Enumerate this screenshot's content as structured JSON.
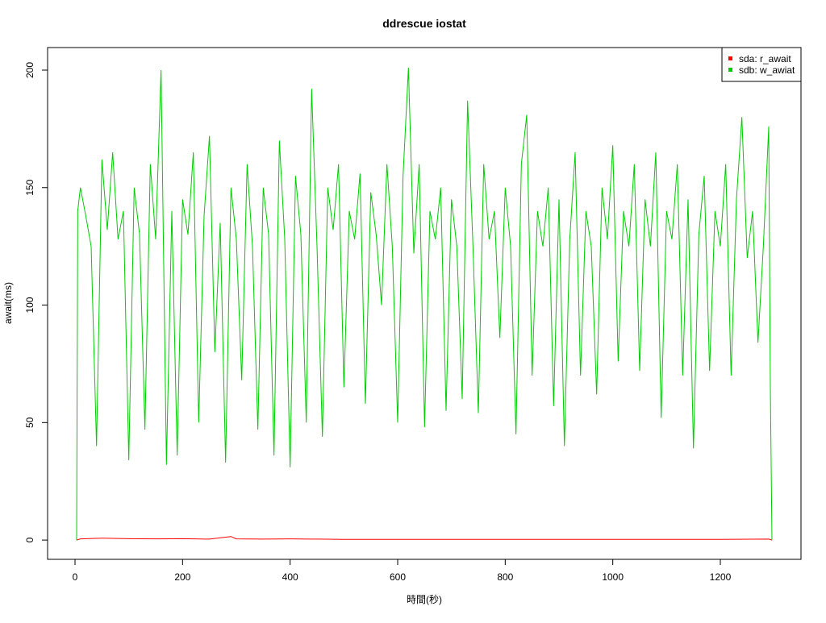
{
  "chart_data": {
    "type": "line",
    "title": "ddrescue iostat",
    "x_label": "時間(秒)",
    "y_label": "await(ms)",
    "xlim": [
      -51,
      1350
    ],
    "ylim": [
      -8.2,
      209.6
    ],
    "xticks": [
      0,
      200,
      400,
      600,
      800,
      1000,
      1200
    ],
    "yticks": [
      0,
      50,
      100,
      150,
      200
    ],
    "grid": false,
    "legend_position": "top-right",
    "series": [
      {
        "name": "sda: r_await",
        "color": "#ff0000",
        "x": [
          3,
          10,
          50,
          100,
          150,
          200,
          250,
          290,
          300,
          350,
          400,
          450,
          500,
          600,
          700,
          800,
          900,
          1000,
          1100,
          1200,
          1290,
          1296
        ],
        "values": [
          0,
          0.5,
          0.8,
          0.6,
          0.5,
          0.6,
          0.4,
          1.5,
          0.5,
          0.4,
          0.5,
          0.4,
          0.3,
          0.3,
          0.3,
          0.3,
          0.3,
          0.3,
          0.3,
          0.3,
          0.4,
          0
        ]
      },
      {
        "name": "sdb: w_awiat",
        "color": "#00cd00",
        "x": [
          3,
          5,
          10,
          20,
          30,
          40,
          50,
          60,
          70,
          80,
          90,
          100,
          110,
          120,
          130,
          140,
          150,
          160,
          170,
          180,
          190,
          200,
          210,
          220,
          230,
          240,
          250,
          260,
          270,
          280,
          290,
          300,
          310,
          320,
          330,
          340,
          350,
          360,
          370,
          380,
          390,
          400,
          410,
          420,
          430,
          440,
          450,
          460,
          470,
          480,
          490,
          500,
          510,
          520,
          530,
          540,
          550,
          560,
          570,
          580,
          590,
          600,
          610,
          620,
          630,
          640,
          650,
          660,
          670,
          680,
          690,
          700,
          710,
          720,
          730,
          740,
          750,
          760,
          770,
          780,
          790,
          800,
          810,
          820,
          830,
          840,
          850,
          860,
          870,
          880,
          890,
          900,
          910,
          920,
          930,
          940,
          950,
          960,
          970,
          980,
          990,
          1000,
          1010,
          1020,
          1030,
          1040,
          1050,
          1060,
          1070,
          1080,
          1090,
          1100,
          1110,
          1120,
          1130,
          1140,
          1150,
          1160,
          1170,
          1180,
          1190,
          1200,
          1210,
          1220,
          1230,
          1240,
          1250,
          1260,
          1270,
          1280,
          1290,
          1293,
          1296
        ],
        "values": [
          0,
          140,
          150,
          138,
          125,
          40,
          162,
          132,
          165,
          128,
          140,
          34,
          150,
          130,
          47,
          160,
          128,
          200,
          32,
          140,
          36,
          145,
          130,
          165,
          50,
          138,
          172,
          80,
          135,
          33,
          150,
          128,
          68,
          160,
          125,
          47,
          150,
          130,
          36,
          170,
          128,
          31,
          155,
          130,
          50,
          192,
          125,
          44,
          150,
          132,
          160,
          65,
          140,
          128,
          156,
          58,
          148,
          130,
          100,
          160,
          125,
          50,
          155,
          201,
          122,
          160,
          48,
          140,
          128,
          150,
          55,
          145,
          125,
          60,
          187,
          125,
          54,
          160,
          128,
          140,
          86,
          150,
          125,
          45,
          160,
          181,
          70,
          140,
          125,
          150,
          57,
          145,
          40,
          128,
          165,
          70,
          140,
          125,
          62,
          150,
          128,
          168,
          76,
          140,
          125,
          160,
          72,
          145,
          125,
          165,
          52,
          140,
          128,
          160,
          70,
          145,
          39,
          130,
          155,
          72,
          140,
          125,
          160,
          70,
          145,
          180,
          120,
          140,
          84,
          125,
          176,
          65,
          0
        ]
      }
    ]
  }
}
